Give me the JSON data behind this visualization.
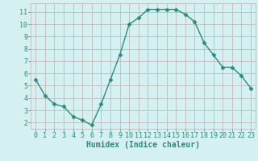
{
  "x": [
    0,
    1,
    2,
    3,
    4,
    5,
    6,
    7,
    8,
    9,
    10,
    11,
    12,
    13,
    14,
    15,
    16,
    17,
    18,
    19,
    20,
    21,
    22,
    23
  ],
  "y": [
    5.5,
    4.2,
    3.5,
    3.3,
    2.5,
    2.2,
    1.8,
    3.5,
    5.5,
    7.5,
    10.0,
    10.5,
    11.2,
    11.2,
    11.2,
    11.2,
    10.8,
    10.2,
    8.5,
    7.5,
    6.5,
    6.5,
    5.8,
    4.8
  ],
  "line_color": "#2e8b7a",
  "marker": "D",
  "markersize": 2.5,
  "linewidth": 1.0,
  "bg_color": "#d4f0f0",
  "grid_color": "#c0b0b0",
  "xlabel": "Humidex (Indice chaleur)",
  "xlabel_fontsize": 7,
  "tick_fontsize": 6,
  "ylim": [
    1.5,
    11.7
  ],
  "xlim": [
    -0.5,
    23.5
  ],
  "yticks": [
    2,
    3,
    4,
    5,
    6,
    7,
    8,
    9,
    10,
    11
  ],
  "xticks": [
    0,
    1,
    2,
    3,
    4,
    5,
    6,
    7,
    8,
    9,
    10,
    11,
    12,
    13,
    14,
    15,
    16,
    17,
    18,
    19,
    20,
    21,
    22,
    23
  ]
}
